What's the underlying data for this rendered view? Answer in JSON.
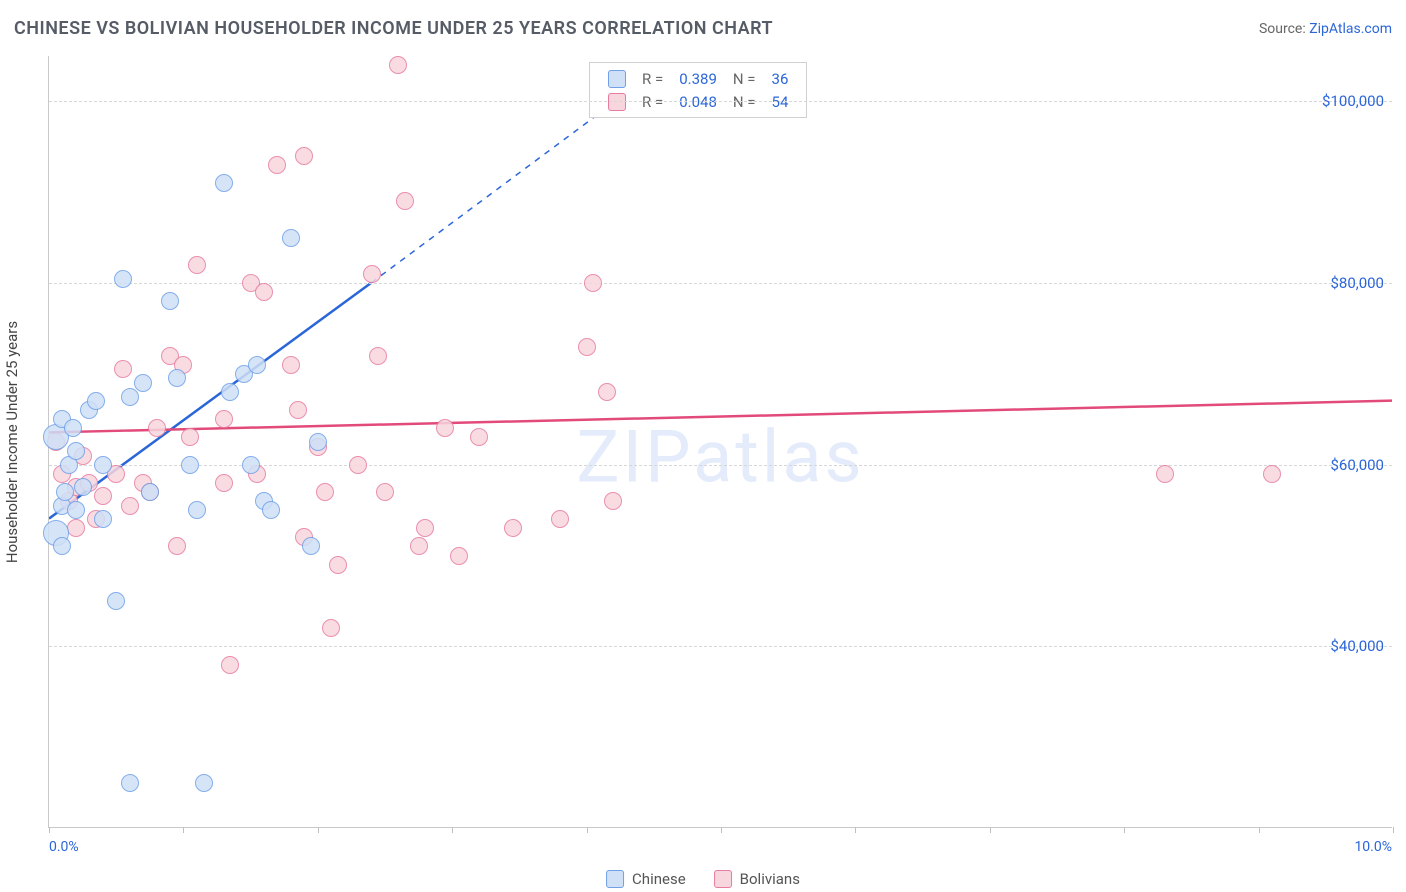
{
  "title": "CHINESE VS BOLIVIAN HOUSEHOLDER INCOME UNDER 25 YEARS CORRELATION CHART",
  "source_label": "Source:",
  "source_name": "ZipAtlas.com",
  "watermark": "ZIPatlas",
  "ylabel": "Householder Income Under 25 years",
  "chart": {
    "type": "scatter",
    "xlim": [
      0,
      10
    ],
    "ylim": [
      20000,
      105000
    ],
    "xticks": [
      0,
      1,
      2,
      3,
      4,
      5,
      6,
      7,
      8,
      9,
      10
    ],
    "xtick_labels_shown": {
      "0": "0.0%",
      "10": "10.0%"
    },
    "yticks": [
      40000,
      60000,
      80000,
      100000
    ],
    "ytick_labels": [
      "$40,000",
      "$60,000",
      "$80,000",
      "$100,000"
    ],
    "grid_color": "#d7d7d7",
    "background_color": "#ffffff",
    "axis_color": "#c9c9c9",
    "marker_radius": 9,
    "series": [
      {
        "name": "Chinese",
        "fill": "#cfe0f7",
        "stroke": "#6fa0e8",
        "line_color": "#2b66d9",
        "R": 0.389,
        "N": 36,
        "trend": {
          "x1": 0,
          "y1": 54000,
          "x2": 2.4,
          "y2": 80000
        },
        "trend_dash": {
          "x1": 2.4,
          "y1": 80000,
          "x2": 4.4,
          "y2": 102000
        },
        "points": [
          [
            0.05,
            63000
          ],
          [
            0.05,
            52500
          ],
          [
            0.1,
            65000
          ],
          [
            0.1,
            55500
          ],
          [
            0.1,
            51000
          ],
          [
            0.12,
            57000
          ],
          [
            0.15,
            60000
          ],
          [
            0.18,
            64000
          ],
          [
            0.2,
            61500
          ],
          [
            0.2,
            55000
          ],
          [
            0.25,
            57500
          ],
          [
            0.3,
            66000
          ],
          [
            0.35,
            67000
          ],
          [
            0.4,
            60000
          ],
          [
            0.4,
            54000
          ],
          [
            0.5,
            45000
          ],
          [
            0.55,
            80500
          ],
          [
            0.6,
            67500
          ],
          [
            0.6,
            25000
          ],
          [
            0.7,
            69000
          ],
          [
            0.75,
            57000
          ],
          [
            0.9,
            78000
          ],
          [
            0.95,
            69500
          ],
          [
            1.05,
            60000
          ],
          [
            1.1,
            55000
          ],
          [
            1.15,
            25000
          ],
          [
            1.3,
            91000
          ],
          [
            1.35,
            68000
          ],
          [
            1.45,
            70000
          ],
          [
            1.5,
            60000
          ],
          [
            1.55,
            71000
          ],
          [
            1.6,
            56000
          ],
          [
            1.65,
            55000
          ],
          [
            1.8,
            85000
          ],
          [
            1.95,
            51000
          ],
          [
            2.0,
            62500
          ]
        ]
      },
      {
        "name": "Bolivians",
        "fill": "#f7d6de",
        "stroke": "#e77ca0",
        "line_color": "#e24a7a",
        "R": 0.048,
        "N": 54,
        "trend": {
          "x1": 0,
          "y1": 63500,
          "x2": 10,
          "y2": 67000
        },
        "points": [
          [
            0.05,
            62500
          ],
          [
            0.1,
            59000
          ],
          [
            0.15,
            56000
          ],
          [
            0.2,
            57500
          ],
          [
            0.2,
            53000
          ],
          [
            0.25,
            61000
          ],
          [
            0.3,
            58000
          ],
          [
            0.35,
            54000
          ],
          [
            0.4,
            56500
          ],
          [
            0.5,
            59000
          ],
          [
            0.55,
            70500
          ],
          [
            0.6,
            55500
          ],
          [
            0.7,
            58000
          ],
          [
            0.75,
            57000
          ],
          [
            0.8,
            64000
          ],
          [
            0.9,
            72000
          ],
          [
            0.95,
            51000
          ],
          [
            1.0,
            71000
          ],
          [
            1.05,
            63000
          ],
          [
            1.1,
            82000
          ],
          [
            1.3,
            65000
          ],
          [
            1.3,
            58000
          ],
          [
            1.35,
            38000
          ],
          [
            1.5,
            80000
          ],
          [
            1.55,
            59000
          ],
          [
            1.6,
            79000
          ],
          [
            1.7,
            93000
          ],
          [
            1.8,
            71000
          ],
          [
            1.85,
            66000
          ],
          [
            1.9,
            94000
          ],
          [
            1.9,
            52000
          ],
          [
            2.0,
            62000
          ],
          [
            2.05,
            57000
          ],
          [
            2.1,
            42000
          ],
          [
            2.15,
            49000
          ],
          [
            2.3,
            60000
          ],
          [
            2.4,
            81000
          ],
          [
            2.45,
            72000
          ],
          [
            2.5,
            57000
          ],
          [
            2.6,
            104000
          ],
          [
            2.65,
            89000
          ],
          [
            2.75,
            51000
          ],
          [
            2.8,
            53000
          ],
          [
            2.95,
            64000
          ],
          [
            3.05,
            50000
          ],
          [
            3.2,
            63000
          ],
          [
            3.45,
            53000
          ],
          [
            3.8,
            54000
          ],
          [
            4.0,
            73000
          ],
          [
            4.05,
            80000
          ],
          [
            4.15,
            68000
          ],
          [
            4.2,
            56000
          ],
          [
            8.3,
            59000
          ],
          [
            9.1,
            59000
          ]
        ]
      }
    ],
    "stats_labels": {
      "R": "R =",
      "N": "N ="
    },
    "legend_labels": [
      "Chinese",
      "Bolivians"
    ]
  }
}
